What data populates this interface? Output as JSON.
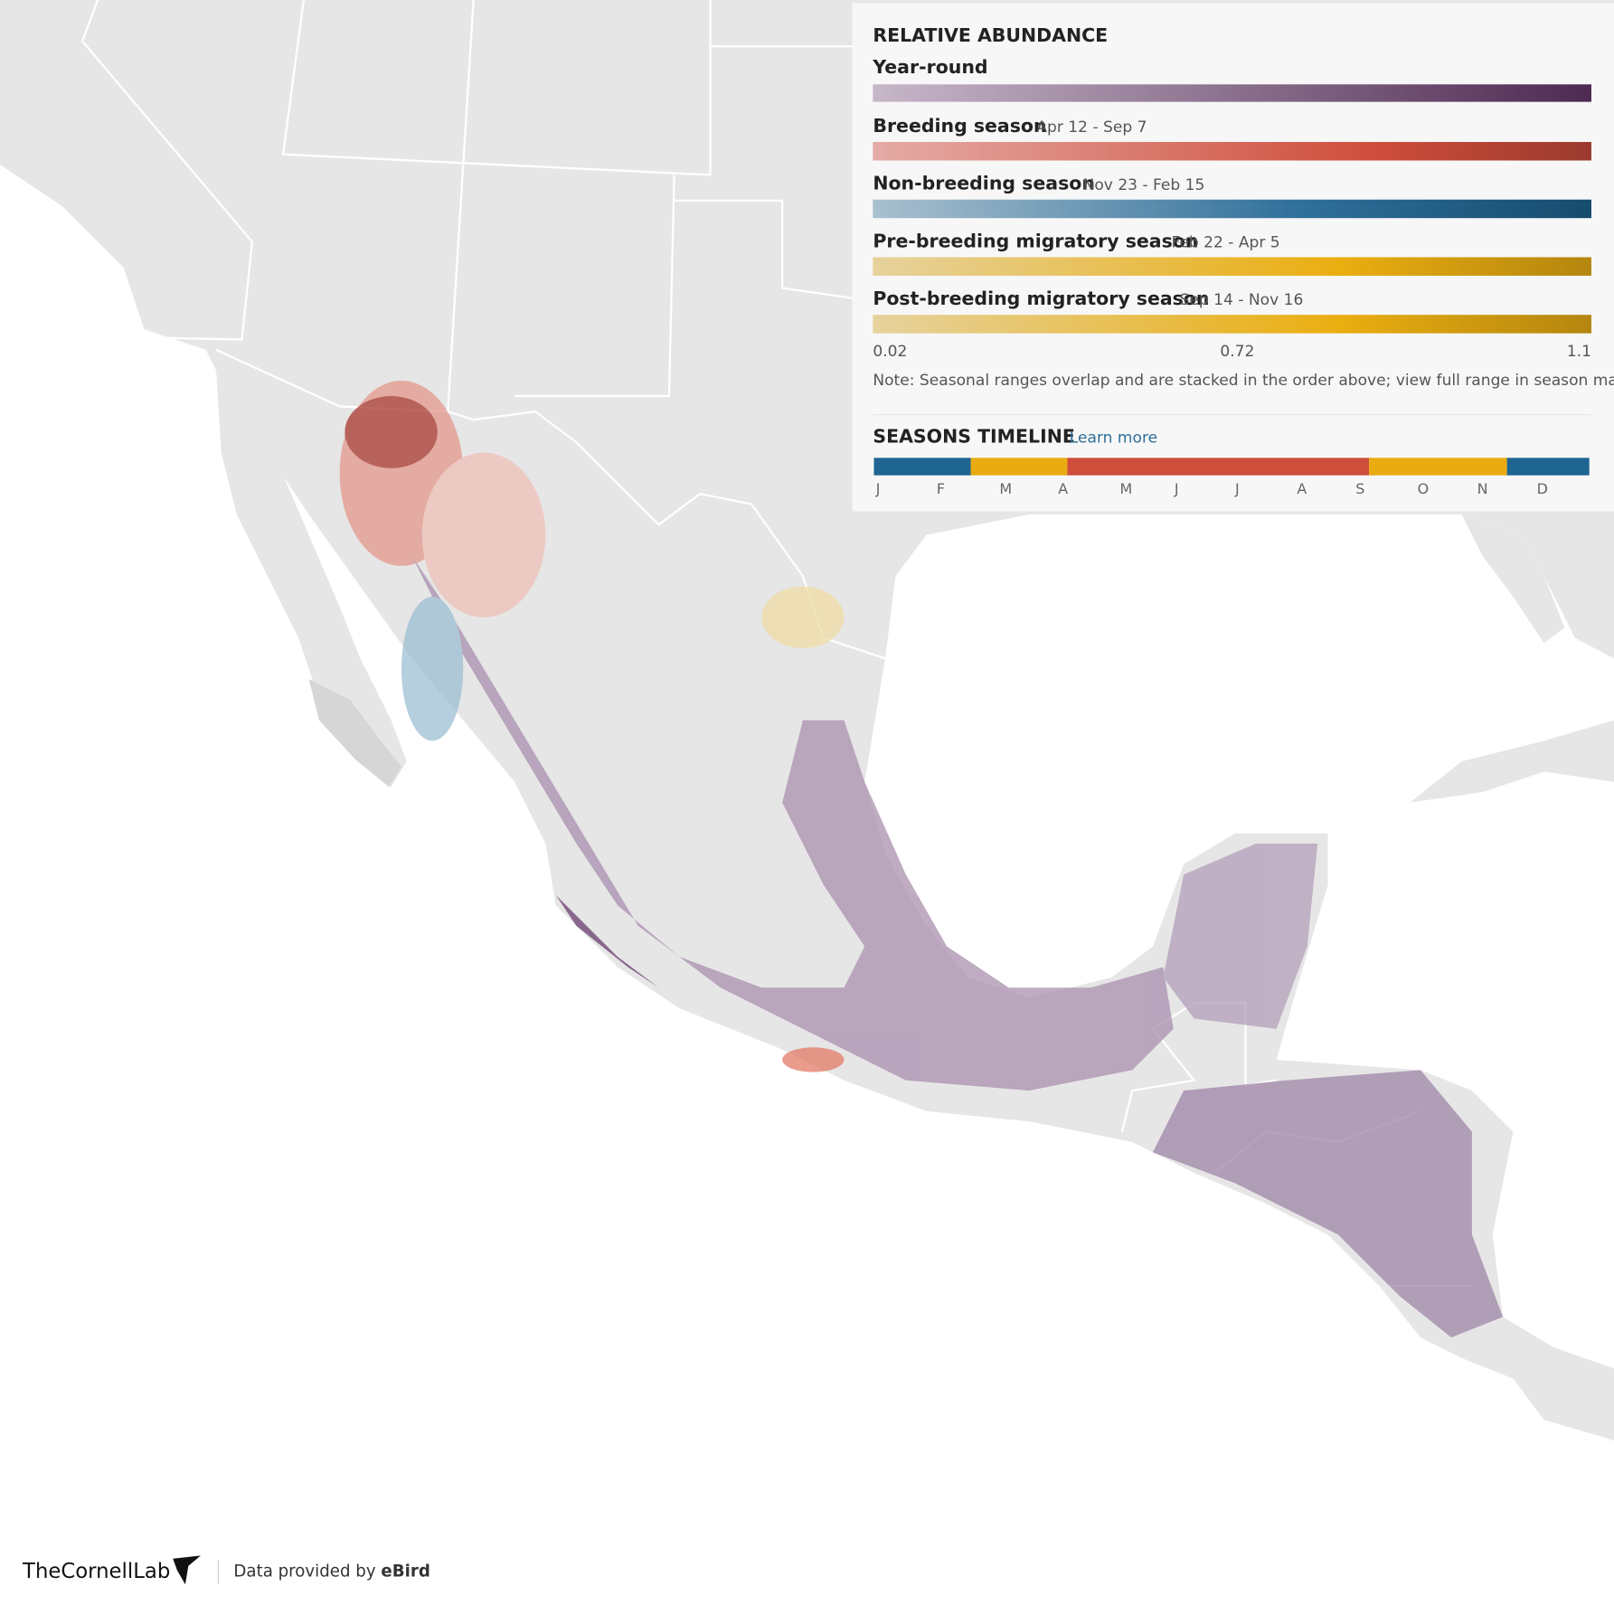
{
  "legend": {
    "title": "RELATIVE ABUNDANCE",
    "seasons": [
      {
        "name": "Year-round"
      },
      {
        "name": "Breeding season",
        "dates": "Apr 12 - Sep 7"
      },
      {
        "name": "Non-breeding season",
        "dates": "Nov 23 - Feb 15"
      },
      {
        "name": "Pre-breeding migratory season",
        "dates": "Feb 22 - Apr 5"
      },
      {
        "name": "Post-breeding migratory season",
        "dates": "Sep 14 - Nov 16"
      }
    ],
    "scale_labels": [
      0.02,
      0.72,
      1.1
    ],
    "note": "Note: Seasonal ranges overlap and are stacked in the order above; view full range in season maps."
  },
  "timeline": {
    "title": "SEASONS TIMELINE",
    "link": "Learn more",
    "months": [
      "J",
      "F",
      "M",
      "A",
      "M",
      "J",
      "J",
      "A",
      "S",
      "O",
      "N",
      "D"
    ]
  },
  "footer": {
    "logo": "TheCornellLab",
    "credit": "Data provided by",
    "source": "eBird"
  }
}
